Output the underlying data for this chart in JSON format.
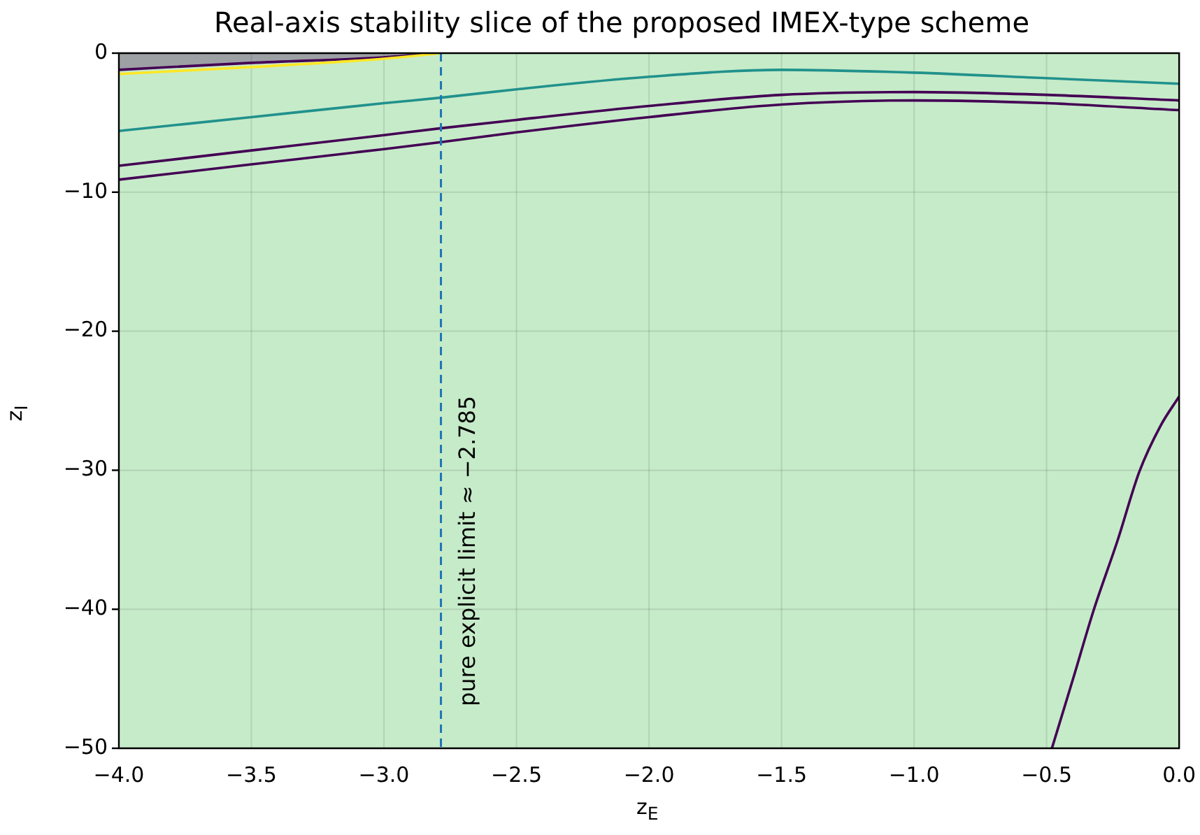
{
  "chart_data": {
    "type": "line",
    "title": "Real-axis stability slice of the proposed IMEX-type scheme",
    "xlabel": "z$_{E}$",
    "ylabel": "z$_{I}$",
    "xlim": [
      -4,
      0
    ],
    "ylim": [
      -50,
      0
    ],
    "xticks": [
      {
        "value": -4,
        "label": "−4.0"
      },
      {
        "value": -3.5,
        "label": "−3.5"
      },
      {
        "value": -3,
        "label": "−3.0"
      },
      {
        "value": -2.5,
        "label": "−2.5"
      },
      {
        "value": -2,
        "label": "−2.0"
      },
      {
        "value": -1.5,
        "label": "−1.5"
      },
      {
        "value": -1,
        "label": "−1.0"
      },
      {
        "value": -0.5,
        "label": "−0.5"
      },
      {
        "value": 0,
        "label": "0.0"
      }
    ],
    "yticks": [
      {
        "value": -50,
        "label": "−50"
      },
      {
        "value": -40,
        "label": "−40"
      },
      {
        "value": -30,
        "label": "−30"
      },
      {
        "value": -20,
        "label": "−20"
      },
      {
        "value": -10,
        "label": "−10"
      },
      0
    ],
    "grid": true,
    "marker": "none",
    "bands": [
      {
        "axis": "y",
        "from": -50,
        "to": 0,
        "color": "#c6ebc9"
      }
    ],
    "ref_lines": [
      {
        "axis": "x",
        "value": -2.785,
        "label": "pure explicit limit ≈ −2.785",
        "color": "#1f77b4",
        "line_style": "dashed"
      }
    ],
    "series": [
      {
        "type": "area",
        "color": "#440154",
        "x": [
          -4,
          -3.5,
          -3,
          -2.8
        ],
        "values": [
          -1.2,
          -0.7,
          -0.3,
          0
        ]
      },
      {
        "color": "#fde725",
        "x": [
          -4,
          -3.5,
          -3,
          -2.785
        ],
        "values": [
          -1.5,
          -1,
          -0.4,
          0
        ]
      },
      {
        "color": "#21918c",
        "x": [
          -4,
          -3.5,
          -3,
          -2.785,
          -2.5,
          -2,
          -1.5,
          -1,
          -0.5,
          0
        ],
        "values": [
          -5.6,
          -4.6,
          -3.6,
          -3.2,
          -2.6,
          -1.7,
          -1.2,
          -1.4,
          -1.8,
          -2.2
        ]
      },
      {
        "color": "#440154",
        "x": [
          -4,
          -3.5,
          -3,
          -2.785,
          -2.5,
          -2,
          -1.5,
          -1,
          -0.5,
          0
        ],
        "values": [
          -8.1,
          -7,
          -5.9,
          -5.4,
          -4.8,
          -3.8,
          -3.0,
          -2.8,
          -3.0,
          -3.4
        ]
      },
      {
        "color": "#440154",
        "x": [
          -4,
          -3.5,
          -3,
          -2.785,
          -2.5,
          -2,
          -1.5,
          -1,
          -0.5,
          0
        ],
        "values": [
          -9.1,
          -8,
          -6.9,
          -6.4,
          -5.7,
          -4.6,
          -3.7,
          -3.4,
          -3.6,
          -4.1
        ]
      },
      {
        "color": "#440154",
        "x": [
          -0.48,
          -0.4,
          -0.323,
          -0.233,
          -0.15,
          -0.07,
          0
        ],
        "values": [
          -50,
          -45,
          -40.1,
          -35.1,
          -30.1,
          -26.8,
          -24.7
        ]
      }
    ]
  }
}
